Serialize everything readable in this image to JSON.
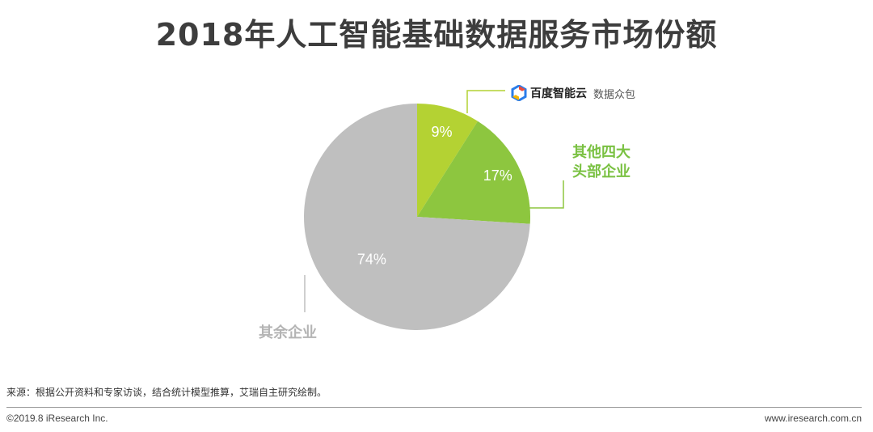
{
  "header": {
    "title": "2018年人工智能基础数据服务市场份额"
  },
  "chart_data": {
    "type": "pie",
    "title": "2018年人工智能基础数据服务市场份额",
    "slices": [
      {
        "label": "百度智能云 数据众包",
        "value": 9,
        "display": "9%",
        "color": "#b4d233"
      },
      {
        "label": "其他四大头部企业",
        "value": 17,
        "display": "17%",
        "color": "#8dc63f"
      },
      {
        "label": "其余企业",
        "value": 74,
        "display": "74%",
        "color": "#bfbfbf"
      }
    ]
  },
  "annotations": {
    "baidu_brand": "百度智能云",
    "baidu_sub": "数据众包",
    "other_four_line1": "其他四大",
    "other_four_line2": "头部企业",
    "rest": "其余企业"
  },
  "footer": {
    "source": "来源：根据公开资料和专家访谈，结合统计模型推算，艾瑞自主研究绘制。",
    "copyright": "©2019.8 iResearch Inc.",
    "website": "www.iresearch.com.cn"
  },
  "colors": {
    "label_green": "#7ac142",
    "label_gray": "#b4b4b4",
    "leader_line": "#b4d233"
  }
}
